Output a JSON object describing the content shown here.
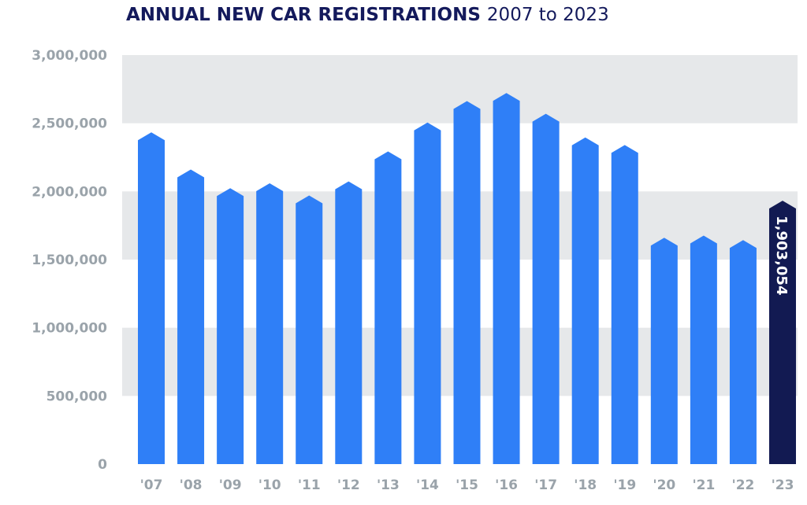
{
  "chart_data": {
    "type": "bar",
    "title": "ANNUAL NEW CAR REGISTRATIONS",
    "subtitle": "2007 to 2023",
    "xlabel": "",
    "ylabel": "",
    "ylim": [
      0,
      3000000
    ],
    "yticks": [
      0,
      500000,
      1000000,
      1500000,
      2000000,
      2500000,
      3000000
    ],
    "ytick_labels": [
      "0",
      "500,000",
      "1,000,000",
      "1,500,000",
      "2,000,000",
      "2,500,000",
      "3,000,000"
    ],
    "categories": [
      "'07",
      "'08",
      "'09",
      "'10",
      "'11",
      "'12",
      "'13",
      "'14",
      "'15",
      "'16",
      "'17",
      "'18",
      "'19",
      "'20",
      "'21",
      "'22",
      "'23"
    ],
    "values": [
      2404007,
      2131795,
      1994999,
      2030846,
      1941253,
      2044609,
      2264737,
      2476435,
      2633503,
      2692786,
      2540617,
      2367147,
      2311140,
      1631064,
      1647181,
      1614063,
      1903054
    ],
    "highlight_index": 16,
    "highlight_label": "1,903,054",
    "grid": "alternating horizontal bands",
    "colors": {
      "bar": "#2f7ff7",
      "highlight": "#121a52",
      "band": "#e6e8ea",
      "title": "#141a5c",
      "axis_text": "#9aa3aa"
    }
  }
}
